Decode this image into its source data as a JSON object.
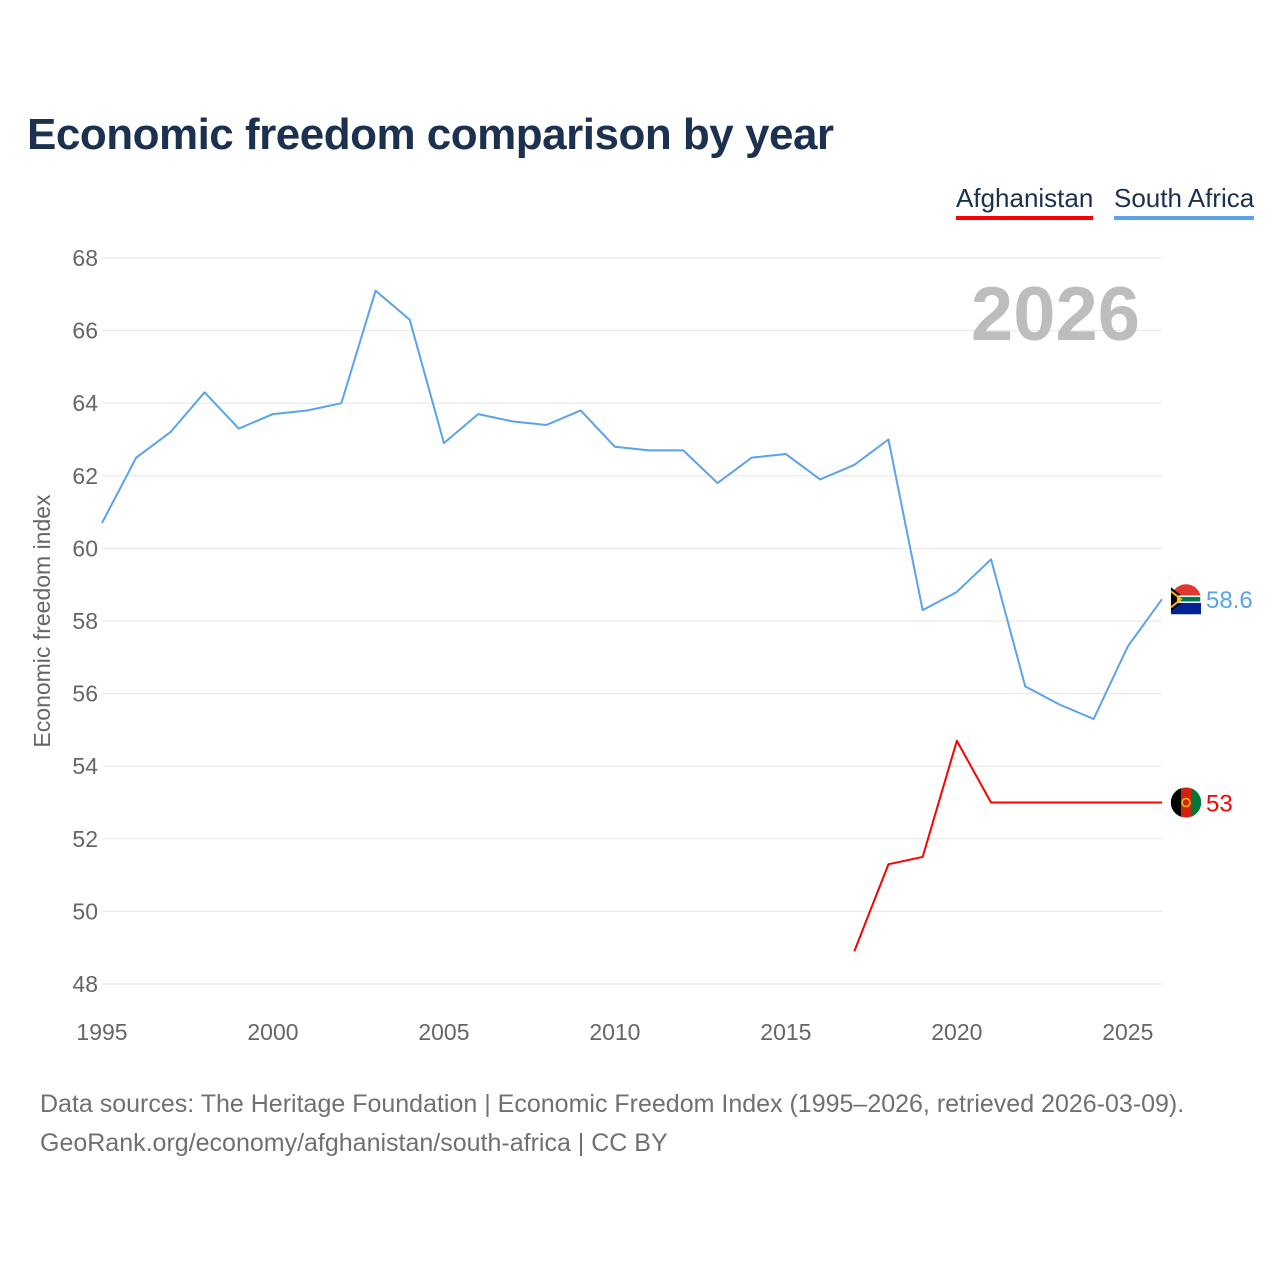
{
  "title": "Economic freedom comparison by year",
  "legend": [
    {
      "name": "Afghanistan",
      "color": "#ff0000"
    },
    {
      "name": "South Africa",
      "color": "#5ba3e8"
    }
  ],
  "year_label": "2026",
  "footer": {
    "line1": "Data sources: The Heritage Foundation | Economic Freedom Index (1995–2026, retrieved 2026-03-09).",
    "line2": "GeoRank.org/economy/afghanistan/south-africa | CC BY"
  },
  "chart_data": {
    "type": "line",
    "title": "Economic freedom comparison by year",
    "xlabel": "",
    "ylabel": "Economic freedom index",
    "xlim": [
      1995,
      2026
    ],
    "ylim": [
      48,
      68
    ],
    "xticks": [
      1995,
      2000,
      2005,
      2010,
      2015,
      2020,
      2025
    ],
    "yticks": [
      48,
      50,
      52,
      54,
      56,
      58,
      60,
      62,
      64,
      66,
      68
    ],
    "grid": true,
    "legend_position": "top-right",
    "series": [
      {
        "name": "South Africa",
        "color": "#5ba3e8",
        "end_label": "58.6",
        "x": [
          1995,
          1996,
          1997,
          1998,
          1999,
          2000,
          2001,
          2002,
          2003,
          2004,
          2005,
          2006,
          2007,
          2008,
          2009,
          2010,
          2011,
          2012,
          2013,
          2014,
          2015,
          2016,
          2017,
          2018,
          2019,
          2020,
          2021,
          2022,
          2023,
          2024,
          2025,
          2026
        ],
        "values": [
          60.7,
          62.5,
          63.2,
          64.3,
          63.3,
          63.7,
          63.8,
          64.0,
          67.1,
          66.3,
          62.9,
          63.7,
          63.5,
          63.4,
          63.8,
          62.8,
          62.7,
          62.7,
          61.8,
          62.5,
          62.6,
          61.9,
          62.3,
          63.0,
          58.3,
          58.8,
          59.7,
          56.2,
          55.7,
          55.3,
          57.3,
          58.6
        ]
      },
      {
        "name": "Afghanistan",
        "color": "#ff0000",
        "end_label": "53",
        "x": [
          2017,
          2018,
          2019,
          2020,
          2021,
          2022,
          2023,
          2024,
          2025,
          2026
        ],
        "values": [
          48.9,
          51.3,
          51.5,
          54.7,
          53.0,
          53.0,
          53.0,
          53.0,
          53.0,
          53.0
        ]
      }
    ]
  }
}
